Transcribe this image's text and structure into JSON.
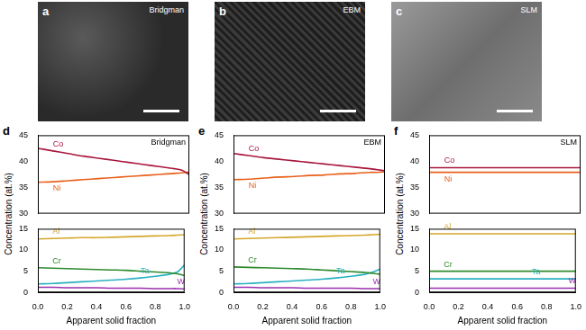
{
  "images": [
    {
      "panel": "a",
      "label": "Bridgman"
    },
    {
      "panel": "b",
      "label": "EBM"
    },
    {
      "panel": "c",
      "label": "SLM"
    }
  ],
  "chart_data": [
    {
      "panel": "d",
      "title": "Bridgman",
      "type": "line",
      "x": [
        0,
        0.1,
        0.2,
        0.3,
        0.4,
        0.5,
        0.6,
        0.7,
        0.8,
        0.9,
        0.95,
        1.0
      ],
      "xlim": [
        0,
        1
      ],
      "xticks": [
        {
          "value": 0,
          "label": "0.0"
        },
        {
          "value": 0.2,
          "label": "0.2"
        },
        {
          "value": 0.4,
          "label": "0.4"
        },
        {
          "value": 0.6,
          "label": "0.6"
        },
        {
          "value": 0.8,
          "label": "0.8"
        },
        {
          "value": 1,
          "label": "1.0"
        }
      ],
      "xlabel": "Apparent solid fraction",
      "ylabel": "Concentration (at.%)",
      "grid": false,
      "segments": [
        {
          "ylim": [
            30,
            45
          ],
          "yticks": [
            30,
            35,
            40,
            45
          ],
          "series": [
            {
              "name": "Co",
              "color": "#a8163c",
              "values": [
                42.5,
                42.0,
                41.5,
                41.0,
                40.6,
                40.2,
                39.8,
                39.4,
                39.0,
                38.6,
                38.3,
                37.5
              ]
            },
            {
              "name": "Ni",
              "color": "#e8601c",
              "values": [
                36.0,
                36.1,
                36.3,
                36.5,
                36.7,
                36.9,
                37.1,
                37.3,
                37.5,
                37.7,
                37.8,
                38.0
              ]
            }
          ]
        },
        {
          "ylim": [
            0,
            15
          ],
          "yticks": [
            0,
            5,
            10,
            15
          ],
          "series": [
            {
              "name": "Al",
              "color": "#d4a72c",
              "values": [
                12.6,
                12.7,
                12.8,
                12.9,
                12.9,
                13.0,
                13.1,
                13.2,
                13.3,
                13.4,
                13.5,
                13.6
              ]
            },
            {
              "name": "Cr",
              "color": "#2e8b2e",
              "values": [
                5.8,
                5.7,
                5.6,
                5.5,
                5.4,
                5.3,
                5.2,
                5.0,
                4.8,
                4.6,
                4.4,
                4.0
              ]
            },
            {
              "name": "Ta",
              "color": "#2ab0c0",
              "values": [
                2.0,
                2.1,
                2.3,
                2.5,
                2.7,
                2.9,
                3.1,
                3.4,
                3.8,
                4.3,
                4.8,
                6.5
              ]
            },
            {
              "name": "W",
              "color": "#9b2fae",
              "values": [
                1.2,
                1.2,
                1.1,
                1.1,
                1.1,
                1.0,
                1.0,
                1.0,
                0.9,
                0.9,
                0.9,
                0.8
              ]
            }
          ]
        }
      ]
    },
    {
      "panel": "e",
      "title": "EBM",
      "type": "line",
      "x": [
        0,
        0.1,
        0.2,
        0.3,
        0.4,
        0.5,
        0.6,
        0.7,
        0.8,
        0.9,
        0.95,
        1.0
      ],
      "xlim": [
        0,
        1
      ],
      "xticks": [
        {
          "value": 0,
          "label": "0.0"
        },
        {
          "value": 0.2,
          "label": "0.2"
        },
        {
          "value": 0.4,
          "label": "0.4"
        },
        {
          "value": 0.6,
          "label": "0.6"
        },
        {
          "value": 0.8,
          "label": "0.8"
        },
        {
          "value": 1,
          "label": "1.0"
        }
      ],
      "xlabel": "Apparent solid fraction",
      "ylabel": "Concentration (at.%)",
      "grid": false,
      "segments": [
        {
          "ylim": [
            30,
            45
          ],
          "yticks": [
            30,
            35,
            40,
            45
          ],
          "series": [
            {
              "name": "Co",
              "color": "#a8163c",
              "values": [
                41.5,
                41.1,
                40.7,
                40.4,
                40.1,
                39.8,
                39.5,
                39.2,
                38.9,
                38.6,
                38.4,
                38.2
              ]
            },
            {
              "name": "Ni",
              "color": "#e8601c",
              "values": [
                36.5,
                36.6,
                36.8,
                37.0,
                37.1,
                37.3,
                37.4,
                37.6,
                37.7,
                37.9,
                37.9,
                38.0
              ]
            }
          ]
        },
        {
          "ylim": [
            0,
            15
          ],
          "yticks": [
            0,
            5,
            10,
            15
          ],
          "series": [
            {
              "name": "Al",
              "color": "#d4a72c",
              "values": [
                12.6,
                12.7,
                12.8,
                12.9,
                13.0,
                13.1,
                13.2,
                13.3,
                13.4,
                13.5,
                13.6,
                13.7
              ]
            },
            {
              "name": "Cr",
              "color": "#2e8b2e",
              "values": [
                6.0,
                5.9,
                5.8,
                5.7,
                5.6,
                5.5,
                5.3,
                5.1,
                4.9,
                4.7,
                4.5,
                4.3
              ]
            },
            {
              "name": "Ta",
              "color": "#2ab0c0",
              "values": [
                2.0,
                2.1,
                2.3,
                2.5,
                2.7,
                2.9,
                3.1,
                3.4,
                3.8,
                4.3,
                4.8,
                5.5
              ]
            },
            {
              "name": "W",
              "color": "#9b2fae",
              "values": [
                1.2,
                1.2,
                1.1,
                1.1,
                1.1,
                1.0,
                1.0,
                1.0,
                1.0,
                0.9,
                0.9,
                0.9
              ]
            }
          ]
        }
      ]
    },
    {
      "panel": "f",
      "title": "SLM",
      "type": "line",
      "x": [
        0,
        0.1,
        0.2,
        0.3,
        0.4,
        0.5,
        0.6,
        0.7,
        0.8,
        0.9,
        0.95,
        1.0
      ],
      "xlim": [
        0,
        1
      ],
      "xticks": [
        {
          "value": 0,
          "label": "0.0"
        },
        {
          "value": 0.2,
          "label": "0.2"
        },
        {
          "value": 0.4,
          "label": "0.4"
        },
        {
          "value": 0.6,
          "label": "0.6"
        },
        {
          "value": 0.8,
          "label": "0.8"
        },
        {
          "value": 1,
          "label": "1.0"
        }
      ],
      "xlabel": "Apparent solid fraction",
      "ylabel": "Concentration (at.%)",
      "grid": false,
      "segments": [
        {
          "ylim": [
            30,
            45
          ],
          "yticks": [
            30,
            35,
            40,
            45
          ],
          "series": [
            {
              "name": "Co",
              "color": "#a8163c",
              "values": [
                38.8,
                38.8,
                38.8,
                38.8,
                38.8,
                38.8,
                38.8,
                38.8,
                38.8,
                38.8,
                38.8,
                38.8
              ]
            },
            {
              "name": "Ni",
              "color": "#e8601c",
              "values": [
                37.9,
                37.9,
                37.9,
                37.9,
                37.9,
                37.9,
                37.9,
                37.9,
                37.9,
                37.9,
                37.9,
                37.9
              ]
            }
          ]
        },
        {
          "ylim": [
            0,
            15
          ],
          "yticks": [
            0,
            5,
            10,
            15
          ],
          "series": [
            {
              "name": "Al",
              "color": "#d4a72c",
              "values": [
                13.8,
                13.8,
                13.8,
                13.8,
                13.8,
                13.8,
                13.8,
                13.8,
                13.8,
                13.8,
                13.8,
                13.8
              ]
            },
            {
              "name": "Cr",
              "color": "#2e8b2e",
              "values": [
                5.0,
                5.0,
                5.0,
                5.0,
                5.0,
                5.0,
                5.0,
                5.0,
                5.0,
                5.0,
                5.0,
                5.0
              ]
            },
            {
              "name": "Ta",
              "color": "#2ab0c0",
              "values": [
                3.2,
                3.2,
                3.2,
                3.2,
                3.2,
                3.2,
                3.2,
                3.2,
                3.2,
                3.2,
                3.2,
                3.2
              ]
            },
            {
              "name": "W",
              "color": "#9b2fae",
              "values": [
                1.0,
                1.0,
                1.0,
                1.0,
                1.0,
                1.0,
                1.0,
                1.0,
                1.0,
                1.0,
                1.0,
                1.0
              ]
            }
          ]
        }
      ]
    }
  ]
}
